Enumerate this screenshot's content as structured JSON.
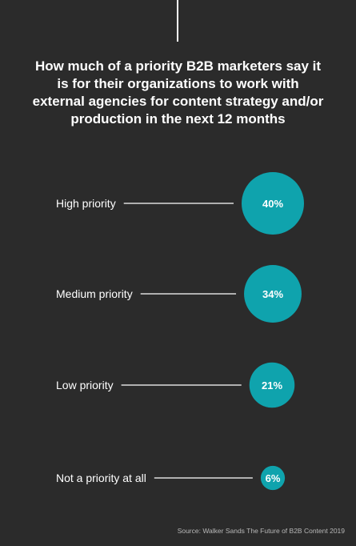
{
  "chart_data": {
    "type": "bubble",
    "title": "How much of a priority B2B marketers say it is for their organizations to work with external agencies for content strategy and/or production in the next 12 months",
    "categories": [
      "High priority",
      "Medium priority",
      "Low priority",
      "Not a priority at all"
    ],
    "values": [
      40,
      34,
      21,
      6
    ],
    "value_labels": [
      "40%",
      "34%",
      "21%",
      "6%"
    ],
    "unit": "%",
    "color": "#0fa3ad"
  },
  "source": "Source: Walker Sands The Future of B2B Content 2019",
  "colors": {
    "background": "#2b2b2b",
    "bubble": "#0fa3ad",
    "text": "#ffffff",
    "source_text": "#b8b8b8"
  }
}
